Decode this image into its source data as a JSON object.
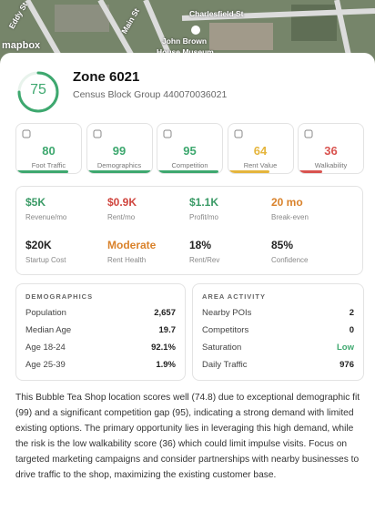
{
  "map": {
    "labels": [
      "Eddy St",
      "Main St",
      "Charlesfield St",
      "John Brown",
      "House Museum",
      "mapbox"
    ]
  },
  "zone": {
    "score": 75,
    "title": "Zone 6021",
    "subtitle": "Census Block Group 440070036021"
  },
  "metrics": [
    {
      "label": "Foot Traffic",
      "score": 80,
      "color": "#3ea86f"
    },
    {
      "label": "Demographics",
      "score": 99,
      "color": "#3ea86f"
    },
    {
      "label": "Competition",
      "score": 95,
      "color": "#3ea86f"
    },
    {
      "label": "Rent Value",
      "score": 64,
      "color": "#e5b53c"
    },
    {
      "label": "Walkability",
      "score": 36,
      "color": "#d9534f"
    }
  ],
  "financials": [
    {
      "value": "$5K",
      "label": "Revenue/mo",
      "color": "#3a9a66"
    },
    {
      "value": "$0.9K",
      "label": "Rent/mo",
      "color": "#d0463f"
    },
    {
      "value": "$1.1K",
      "label": "Profit/mo",
      "color": "#3a9a66"
    },
    {
      "value": "20 mo",
      "label": "Break-even",
      "color": "#d9822b"
    },
    {
      "value": "$20K",
      "label": "Startup Cost",
      "color": "#222222"
    },
    {
      "value": "Moderate",
      "label": "Rent Health",
      "color": "#d9822b"
    },
    {
      "value": "18%",
      "label": "Rent/Rev",
      "color": "#222222"
    },
    {
      "value": "85%",
      "label": "Confidence",
      "color": "#222222"
    }
  ],
  "demographics": {
    "title": "DEMOGRAPHICS",
    "rows": [
      [
        "Population",
        "2,657"
      ],
      [
        "Median Age",
        "19.7"
      ],
      [
        "Age 18-24",
        "92.1%"
      ],
      [
        "Age 25-39",
        "1.9%"
      ]
    ]
  },
  "area_activity": {
    "title": "AREA ACTIVITY",
    "rows": [
      [
        "Nearby POIs",
        "2"
      ],
      [
        "Competitors",
        "0"
      ],
      [
        "Saturation",
        "Low"
      ],
      [
        "Daily Traffic",
        "976"
      ]
    ]
  },
  "summary": "This Bubble Tea Shop location scores well (74.8) due to exceptional demographic fit (99) and a significant competition gap (95), indicating a strong demand with limited existing options. The primary opportunity lies in leveraging this high demand, while the risk is the low walkability score (36) which could limit impulse visits. Focus on targeted marketing campaigns and consider partnerships with nearby businesses to drive traffic to the shop, maximizing the existing customer base."
}
